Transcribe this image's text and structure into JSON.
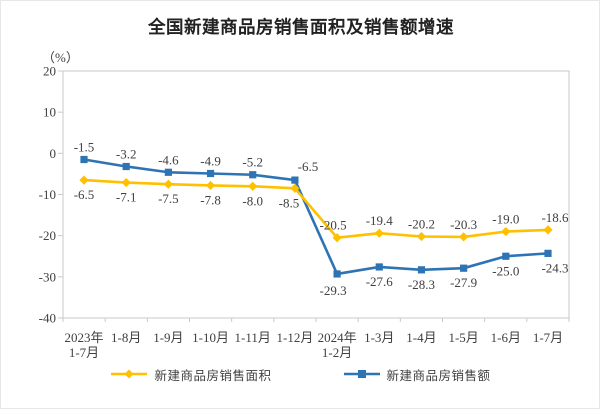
{
  "page": {
    "title": "全国新建商品房销售面积及销售额增速",
    "unit_label": "（%）"
  },
  "chart_data": {
    "type": "line",
    "title": "全国新建商品房销售面积及销售额增速",
    "ylabel": "（%）",
    "xlabel": "",
    "categories": [
      [
        "2023年",
        "1-7月"
      ],
      [
        "1-8月"
      ],
      [
        "1-9月"
      ],
      [
        "1-10月"
      ],
      [
        "1-11月"
      ],
      [
        "1-12月"
      ],
      [
        "2024年",
        "1-2月"
      ],
      [
        "1-3月"
      ],
      [
        "1-4月"
      ],
      [
        "1-5月"
      ],
      [
        "1-6月"
      ],
      [
        "1-7月"
      ]
    ],
    "series": [
      {
        "name": "新建商品房销售面积",
        "color": "#FFC000",
        "marker": "diamond",
        "values": [
          -6.5,
          -7.1,
          -7.5,
          -7.8,
          -8.0,
          -8.5,
          -20.5,
          -19.4,
          -20.2,
          -20.3,
          -19.0,
          -18.6
        ],
        "labels": [
          "-6.5",
          "-7.1",
          "-7.5",
          "-7.8",
          "-8.0",
          "-8.5",
          "-20.5",
          "-19.4",
          "-20.2",
          "-20.3",
          "-19.0",
          "-18.6"
        ]
      },
      {
        "name": "新建商品房销售额",
        "color": "#2E74B5",
        "marker": "square",
        "values": [
          -1.5,
          -3.2,
          -4.6,
          -4.9,
          -5.2,
          -6.5,
          -29.3,
          -27.6,
          -28.3,
          -27.9,
          -25.0,
          -24.3
        ],
        "labels": [
          "-1.5",
          "-3.2",
          "-4.6",
          "-4.9",
          "-5.2",
          "-6.5",
          "-29.3",
          "-27.6",
          "-28.3",
          "-27.9",
          "-25.0",
          "-24.3"
        ]
      }
    ],
    "ylim": [
      -40,
      20
    ],
    "yticks": [
      "20",
      "10",
      "0",
      "-10",
      "-20",
      "-30",
      "-40"
    ],
    "grid": false,
    "legend_position": "bottom",
    "axis_color": "#c9c9c9",
    "text_color": "#404040"
  }
}
